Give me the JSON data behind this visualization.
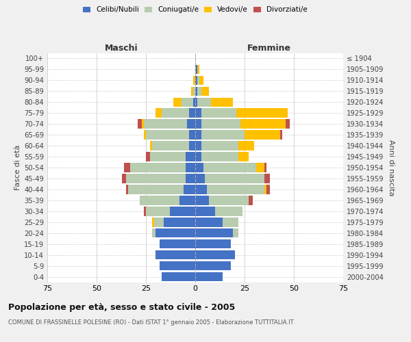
{
  "age_groups": [
    "0-4",
    "5-9",
    "10-14",
    "15-19",
    "20-24",
    "25-29",
    "30-34",
    "35-39",
    "40-44",
    "45-49",
    "50-54",
    "55-59",
    "60-64",
    "65-69",
    "70-74",
    "75-79",
    "80-84",
    "85-89",
    "90-94",
    "95-99",
    "100+"
  ],
  "birth_years": [
    "2000-2004",
    "1995-1999",
    "1990-1994",
    "1985-1989",
    "1980-1984",
    "1975-1979",
    "1970-1974",
    "1965-1969",
    "1960-1964",
    "1955-1959",
    "1950-1954",
    "1945-1949",
    "1940-1944",
    "1935-1939",
    "1930-1934",
    "1925-1929",
    "1920-1924",
    "1915-1919",
    "1910-1914",
    "1905-1909",
    "≤ 1904"
  ],
  "colors": {
    "celibi": "#4472C4",
    "coniugati": "#B8CCB0",
    "vedovi": "#FFC000",
    "divorziati": "#C0504D"
  },
  "males": {
    "celibi": [
      17,
      18,
      20,
      18,
      20,
      16,
      13,
      8,
      6,
      5,
      5,
      5,
      3,
      3,
      4,
      3,
      1,
      0,
      0,
      0,
      0
    ],
    "coniugati": [
      0,
      0,
      0,
      0,
      2,
      5,
      12,
      20,
      28,
      30,
      28,
      18,
      19,
      22,
      22,
      14,
      6,
      1,
      0,
      0,
      0
    ],
    "vedovi": [
      0,
      0,
      0,
      0,
      0,
      1,
      0,
      0,
      0,
      0,
      0,
      0,
      1,
      1,
      1,
      3,
      4,
      1,
      1,
      0,
      0
    ],
    "divorziati": [
      0,
      0,
      0,
      0,
      0,
      0,
      1,
      0,
      1,
      2,
      3,
      2,
      0,
      0,
      2,
      0,
      0,
      0,
      0,
      0,
      0
    ]
  },
  "females": {
    "nubili": [
      14,
      18,
      20,
      18,
      19,
      14,
      10,
      7,
      6,
      5,
      4,
      3,
      3,
      3,
      3,
      3,
      1,
      1,
      1,
      1,
      0
    ],
    "coniugati": [
      0,
      0,
      0,
      0,
      3,
      8,
      14,
      20,
      29,
      30,
      27,
      19,
      19,
      22,
      20,
      18,
      7,
      2,
      1,
      0,
      0
    ],
    "vedovi": [
      0,
      0,
      0,
      0,
      0,
      0,
      0,
      0,
      1,
      0,
      4,
      5,
      8,
      18,
      23,
      26,
      11,
      4,
      2,
      1,
      0
    ],
    "divorziati": [
      0,
      0,
      0,
      0,
      0,
      0,
      0,
      2,
      2,
      3,
      1,
      0,
      0,
      1,
      2,
      0,
      0,
      0,
      0,
      0,
      0
    ]
  },
  "title": "Popolazione per età, sesso e stato civile - 2005",
  "subtitle": "COMUNE DI FRASSINELLE POLESINE (RO) - Dati ISTAT 1° gennaio 2005 - Elaborazione TUTTITALIA.IT",
  "xlabel_left": "Maschi",
  "xlabel_right": "Femmine",
  "ylabel_left": "Fasce di età",
  "ylabel_right": "Anni di nascita",
  "xlim": 75,
  "bg_color": "#f0f0f0",
  "plot_bg": "#ffffff",
  "grid_color": "#cccccc"
}
